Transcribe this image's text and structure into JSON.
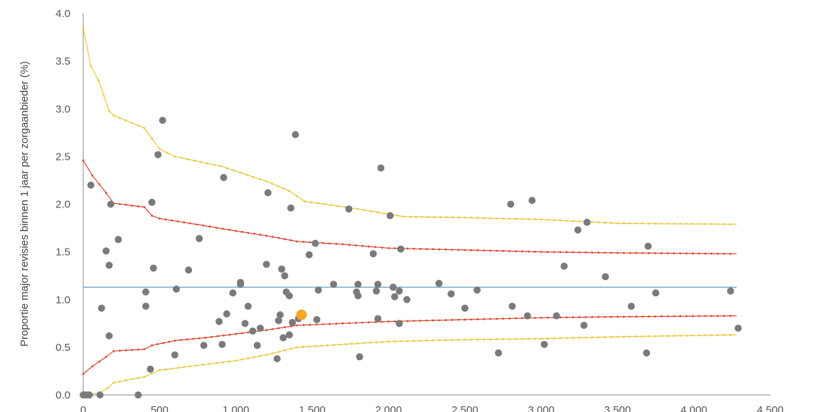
{
  "chart_data": {
    "type": "scatter",
    "title": "",
    "xlabel": "",
    "ylabel": "Proportie major revisies binnen 1 jaar per zorgaanbieder (%)",
    "xlim": [
      0,
      4500
    ],
    "ylim": [
      0,
      4.0
    ],
    "x_ticks": [
      "0",
      "500",
      "1.000",
      "1.500",
      "2.000",
      "2.500",
      "3.000",
      "3.500",
      "4.000",
      "4.500"
    ],
    "y_ticks": [
      "0.0",
      "0.5",
      "1.0",
      "1.5",
      "2.0",
      "2.5",
      "3.0",
      "3.5",
      "4.0"
    ],
    "grid": false,
    "colors": {
      "points": "#7a7a7a",
      "highlight": "#f5a623",
      "mean_line": "#6fa8c8",
      "limit_95": "#d9442c",
      "limit_99": "#e6c73a"
    },
    "series": [
      {
        "role": "mean",
        "values": [
          [
            0,
            1.13
          ],
          [
            4280,
            1.13
          ]
        ]
      },
      {
        "role": "upper-95",
        "values": [
          [
            0,
            2.46
          ],
          [
            60,
            2.3
          ],
          [
            150,
            2.12
          ],
          [
            200,
            2.01
          ],
          [
            400,
            1.97
          ],
          [
            450,
            1.88
          ],
          [
            500,
            1.85
          ],
          [
            700,
            1.8
          ],
          [
            1000,
            1.72
          ],
          [
            1200,
            1.67
          ],
          [
            1400,
            1.61
          ],
          [
            1700,
            1.58
          ],
          [
            2000,
            1.54
          ],
          [
            2500,
            1.52
          ],
          [
            3000,
            1.5
          ],
          [
            3500,
            1.49
          ],
          [
            4280,
            1.48
          ]
        ]
      },
      {
        "role": "lower-95",
        "values": [
          [
            0,
            0.22
          ],
          [
            60,
            0.3
          ],
          [
            150,
            0.4
          ],
          [
            200,
            0.46
          ],
          [
            400,
            0.48
          ],
          [
            450,
            0.52
          ],
          [
            600,
            0.57
          ],
          [
            800,
            0.6
          ],
          [
            1000,
            0.64
          ],
          [
            1200,
            0.68
          ],
          [
            1400,
            0.73
          ],
          [
            1700,
            0.75
          ],
          [
            2000,
            0.77
          ],
          [
            2500,
            0.79
          ],
          [
            3000,
            0.81
          ],
          [
            3500,
            0.82
          ],
          [
            4280,
            0.83
          ]
        ]
      },
      {
        "role": "upper-99",
        "values": [
          [
            0,
            3.85
          ],
          [
            50,
            3.45
          ],
          [
            100,
            3.3
          ],
          [
            170,
            2.98
          ],
          [
            200,
            2.93
          ],
          [
            400,
            2.8
          ],
          [
            500,
            2.58
          ],
          [
            600,
            2.5
          ],
          [
            900,
            2.4
          ],
          [
            1200,
            2.24
          ],
          [
            1350,
            2.14
          ],
          [
            1450,
            2.03
          ],
          [
            1800,
            1.95
          ],
          [
            2100,
            1.87
          ],
          [
            2500,
            1.86
          ],
          [
            3000,
            1.84
          ],
          [
            3500,
            1.8
          ],
          [
            4280,
            1.79
          ]
        ]
      },
      {
        "role": "lower-99",
        "values": [
          [
            0,
            0.0
          ],
          [
            100,
            0.02
          ],
          [
            160,
            0.07
          ],
          [
            200,
            0.13
          ],
          [
            400,
            0.19
          ],
          [
            500,
            0.26
          ],
          [
            700,
            0.3
          ],
          [
            1000,
            0.36
          ],
          [
            1200,
            0.42
          ],
          [
            1400,
            0.5
          ],
          [
            1600,
            0.52
          ],
          [
            2000,
            0.56
          ],
          [
            2500,
            0.58
          ],
          [
            3000,
            0.59
          ],
          [
            3500,
            0.61
          ],
          [
            4280,
            0.63
          ]
        ]
      }
    ],
    "points": [
      [
        0,
        0.0
      ],
      [
        10,
        0.0
      ],
      [
        20,
        0.0
      ],
      [
        40,
        0.0
      ],
      [
        110,
        0.0
      ],
      [
        360,
        0.0
      ],
      [
        50,
        2.2
      ],
      [
        120,
        0.91
      ],
      [
        150,
        1.51
      ],
      [
        170,
        1.36
      ],
      [
        170,
        0.62
      ],
      [
        180,
        2.0
      ],
      [
        230,
        1.63
      ],
      [
        410,
        1.08
      ],
      [
        410,
        0.93
      ],
      [
        440,
        0.27
      ],
      [
        450,
        2.02
      ],
      [
        460,
        1.33
      ],
      [
        490,
        2.52
      ],
      [
        520,
        2.88
      ],
      [
        600,
        0.42
      ],
      [
        610,
        1.11
      ],
      [
        690,
        1.31
      ],
      [
        760,
        1.64
      ],
      [
        790,
        0.52
      ],
      [
        890,
        0.77
      ],
      [
        910,
        0.53
      ],
      [
        920,
        2.28
      ],
      [
        940,
        0.85
      ],
      [
        980,
        1.07
      ],
      [
        1030,
        1.16
      ],
      [
        1030,
        1.18
      ],
      [
        1060,
        0.75
      ],
      [
        1080,
        0.93
      ],
      [
        1110,
        0.67
      ],
      [
        1140,
        0.52
      ],
      [
        1160,
        0.7
      ],
      [
        1200,
        1.37
      ],
      [
        1210,
        2.12
      ],
      [
        1270,
        0.38
      ],
      [
        1280,
        0.78
      ],
      [
        1290,
        0.84
      ],
      [
        1300,
        1.32
      ],
      [
        1310,
        0.6
      ],
      [
        1320,
        1.25
      ],
      [
        1330,
        1.08
      ],
      [
        1350,
        1.04
      ],
      [
        1350,
        0.63
      ],
      [
        1360,
        1.96
      ],
      [
        1370,
        0.76
      ],
      [
        1390,
        2.73
      ],
      [
        1410,
        0.8
      ],
      [
        1480,
        1.47
      ],
      [
        1520,
        1.59
      ],
      [
        1530,
        0.79
      ],
      [
        1540,
        1.1
      ],
      [
        1640,
        1.16
      ],
      [
        1740,
        1.95
      ],
      [
        1790,
        1.08
      ],
      [
        1800,
        1.16
      ],
      [
        1800,
        1.04
      ],
      [
        1810,
        0.4
      ],
      [
        1900,
        1.48
      ],
      [
        1920,
        1.09
      ],
      [
        1930,
        0.8
      ],
      [
        1930,
        1.16
      ],
      [
        1950,
        2.38
      ],
      [
        2010,
        1.88
      ],
      [
        2030,
        1.13
      ],
      [
        2040,
        1.03
      ],
      [
        2070,
        1.09
      ],
      [
        2070,
        0.75
      ],
      [
        2080,
        1.53
      ],
      [
        2120,
        1.0
      ],
      [
        2330,
        1.17
      ],
      [
        2410,
        1.06
      ],
      [
        2500,
        0.91
      ],
      [
        2580,
        1.1
      ],
      [
        2720,
        0.44
      ],
      [
        2800,
        2.0
      ],
      [
        2810,
        0.93
      ],
      [
        2910,
        0.83
      ],
      [
        2940,
        2.04
      ],
      [
        3020,
        0.53
      ],
      [
        3100,
        0.83
      ],
      [
        3150,
        1.35
      ],
      [
        3240,
        1.73
      ],
      [
        3280,
        0.73
      ],
      [
        3300,
        1.81
      ],
      [
        3420,
        1.24
      ],
      [
        3590,
        0.93
      ],
      [
        3690,
        0.44
      ],
      [
        3700,
        1.56
      ],
      [
        3750,
        1.07
      ],
      [
        4240,
        1.09
      ],
      [
        4290,
        0.7
      ]
    ],
    "highlight_point": [
      1430,
      0.84
    ]
  }
}
